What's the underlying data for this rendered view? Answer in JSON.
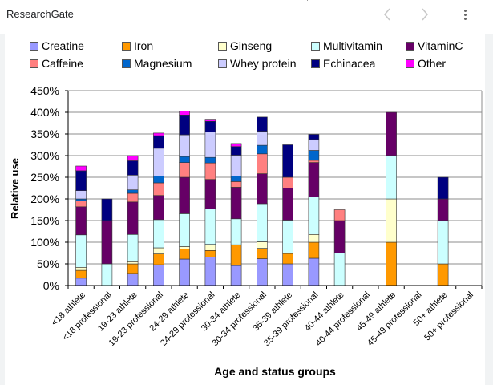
{
  "header": {
    "brand": "ResearchGate",
    "prev_icon": "chevron-left-icon",
    "next_icon": "chevron-right-icon",
    "more_icon": "more-vertical-icon"
  },
  "chart_data": {
    "type": "bar",
    "stacked": true,
    "title": "",
    "xlabel": "Age and status groups",
    "ylabel": "Relative use",
    "ylim": [
      0,
      450
    ],
    "yticks": [
      "0%",
      "50%",
      "100%",
      "150%",
      "200%",
      "250%",
      "300%",
      "350%",
      "400%",
      "450%"
    ],
    "ytick_values": [
      0,
      50,
      100,
      150,
      200,
      250,
      300,
      350,
      400,
      450
    ],
    "grid": true,
    "legend_position": "top",
    "categories": [
      "<18 athlete",
      "<18 professional",
      "19-23 athlete",
      "19-23 professional",
      "24-29 athlete",
      "24-29 professional",
      "30-34 athlete",
      "30-34 professional",
      "35-39 athlete",
      "35-39 professional",
      "40-44 athlete",
      "40-44 professional",
      "45-49 athlete",
      "45-49 professional",
      "50+ athlete",
      "50+ professional"
    ],
    "series": [
      {
        "name": "Creatine",
        "color": "#9999ff",
        "values": [
          17,
          0,
          28,
          48,
          61,
          66,
          46,
          62,
          50,
          63,
          0,
          0,
          0,
          0,
          0,
          0
        ]
      },
      {
        "name": "Iron",
        "color": "#ff9900",
        "values": [
          18,
          0,
          22,
          25,
          23,
          15,
          48,
          24,
          24,
          37,
          0,
          0,
          100,
          0,
          50,
          0
        ]
      },
      {
        "name": "Ginseng",
        "color": "#ffffcc",
        "values": [
          7,
          0,
          5,
          14,
          6,
          14,
          0,
          15,
          0,
          18,
          0,
          0,
          100,
          0,
          0,
          0
        ]
      },
      {
        "name": "Multivitamin",
        "color": "#ccffff",
        "values": [
          75,
          50,
          63,
          65,
          76,
          82,
          60,
          88,
          77,
          87,
          75,
          0,
          100,
          0,
          100,
          0
        ]
      },
      {
        "name": "VitaminC",
        "color": "#660066",
        "values": [
          65,
          100,
          75,
          56,
          84,
          68,
          73,
          69,
          74,
          79,
          75,
          0,
          100,
          0,
          50,
          0
        ]
      },
      {
        "name": "Caffeine",
        "color": "#ff8080",
        "values": [
          14,
          0,
          20,
          29,
          34,
          38,
          13,
          46,
          25,
          5,
          25,
          0,
          0,
          0,
          0,
          0
        ]
      },
      {
        "name": "Magnesium",
        "color": "#0066cc",
        "values": [
          4,
          0,
          8,
          16,
          14,
          13,
          13,
          20,
          0,
          23,
          0,
          0,
          0,
          0,
          0,
          0
        ]
      },
      {
        "name": "Whey protein",
        "color": "#ccccff",
        "values": [
          19,
          0,
          34,
          64,
          50,
          59,
          48,
          32,
          0,
          25,
          0,
          0,
          0,
          0,
          0,
          0
        ]
      },
      {
        "name": "Echinacea",
        "color": "#000080",
        "values": [
          46,
          50,
          33,
          29,
          46,
          24,
          20,
          33,
          75,
          12,
          0,
          0,
          0,
          0,
          50,
          0
        ]
      },
      {
        "name": "Other",
        "color": "#ff00ff",
        "values": [
          11,
          0,
          12,
          6,
          9,
          5,
          7,
          0,
          0,
          0,
          0,
          0,
          0,
          0,
          0,
          0
        ]
      }
    ]
  }
}
